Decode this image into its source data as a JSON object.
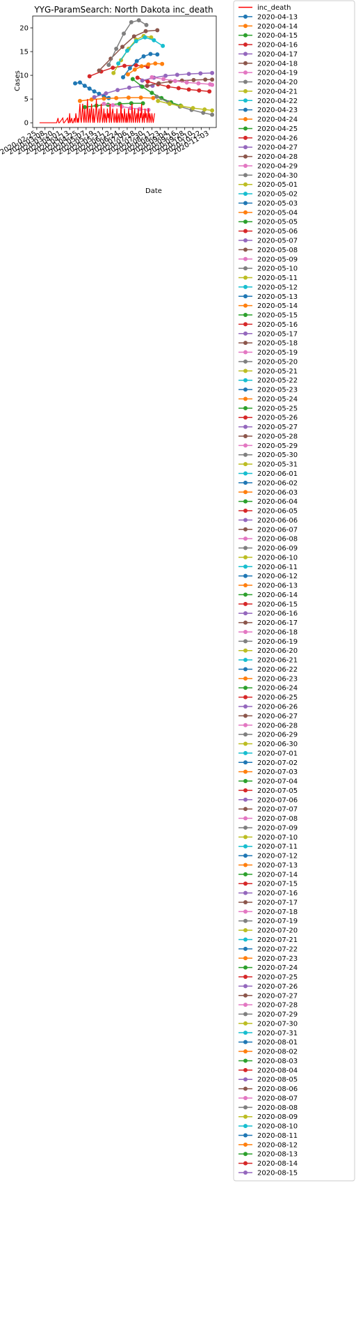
{
  "chart_data": {
    "type": "line",
    "title": "YYG-ParamSearch: North Dakota inc_death",
    "xlabel": "Date",
    "ylabel": "Cases",
    "ylim": [
      -1,
      22.5
    ],
    "xlim": [
      "2020-02-19",
      "2020-11-13"
    ],
    "y_ticks": [
      0,
      5,
      10,
      15,
      20
    ],
    "x_ticks": [
      "2020-02-25",
      "2020-03-08",
      "2020-03-20",
      "2020-04-01",
      "2020-04-13",
      "2020-04-25",
      "2020-05-07",
      "2020-05-19",
      "2020-05-31",
      "2020-06-12",
      "2020-06-24",
      "2020-07-06",
      "2020-07-18",
      "2020-07-30",
      "2020-08-11",
      "2020-08-23",
      "2020-09-04",
      "2020-09-16",
      "2020-09-28",
      "2020-10-10",
      "2020-10-22",
      "2020-11-03"
    ],
    "grid": false,
    "legend_position": "outside-right",
    "actual_color": "#ff0000",
    "palette": [
      "#1f77b4",
      "#ff7f0e",
      "#2ca02c",
      "#d62728",
      "#9467bd",
      "#8c564b",
      "#e377c2",
      "#7f7f7f",
      "#bcbd22",
      "#17becf"
    ],
    "actual": {
      "name": "inc_death",
      "x": [
        "2020-02-29",
        "2020-03-05",
        "2020-03-10",
        "2020-03-15",
        "2020-03-20",
        "2020-03-25",
        "2020-03-27",
        "2020-03-28",
        "2020-03-29",
        "2020-04-03",
        "2020-04-04",
        "2020-04-05",
        "2020-04-10",
        "2020-04-11",
        "2020-04-12",
        "2020-04-13",
        "2020-04-14",
        "2020-04-16",
        "2020-04-17",
        "2020-04-18",
        "2020-04-20",
        "2020-04-21",
        "2020-04-22",
        "2020-04-24",
        "2020-04-25",
        "2020-04-26",
        "2020-04-28",
        "2020-04-29",
        "2020-04-30",
        "2020-05-01",
        "2020-05-02",
        "2020-05-03",
        "2020-05-04",
        "2020-05-05",
        "2020-05-06",
        "2020-05-07",
        "2020-05-08",
        "2020-05-09",
        "2020-05-10",
        "2020-05-11",
        "2020-05-12",
        "2020-05-13",
        "2020-05-14",
        "2020-05-15",
        "2020-05-16",
        "2020-05-17",
        "2020-05-18",
        "2020-05-19",
        "2020-05-20",
        "2020-05-21",
        "2020-05-22",
        "2020-05-23",
        "2020-05-24",
        "2020-05-25",
        "2020-05-26",
        "2020-05-27",
        "2020-05-28",
        "2020-05-29",
        "2020-05-30",
        "2020-05-31",
        "2020-06-01",
        "2020-06-02",
        "2020-06-03",
        "2020-06-04",
        "2020-06-05",
        "2020-06-06",
        "2020-06-07",
        "2020-06-08",
        "2020-06-09",
        "2020-06-10",
        "2020-06-11",
        "2020-06-12",
        "2020-06-13",
        "2020-06-14",
        "2020-06-15",
        "2020-06-16",
        "2020-06-17",
        "2020-06-18",
        "2020-06-19",
        "2020-06-20",
        "2020-06-21",
        "2020-06-22",
        "2020-06-23",
        "2020-06-24",
        "2020-06-25",
        "2020-06-26",
        "2020-06-27",
        "2020-06-28",
        "2020-06-29",
        "2020-06-30",
        "2020-07-01",
        "2020-07-02",
        "2020-07-03",
        "2020-07-04",
        "2020-07-05",
        "2020-07-06",
        "2020-07-07",
        "2020-07-08",
        "2020-07-09",
        "2020-07-10",
        "2020-07-11",
        "2020-07-12",
        "2020-07-13",
        "2020-07-14",
        "2020-07-15",
        "2020-07-16",
        "2020-07-17",
        "2020-07-18",
        "2020-07-19",
        "2020-07-20",
        "2020-07-21",
        "2020-07-22",
        "2020-07-23",
        "2020-07-24",
        "2020-07-25",
        "2020-07-26",
        "2020-07-27",
        "2020-07-28",
        "2020-07-29",
        "2020-07-30",
        "2020-07-31",
        "2020-08-01",
        "2020-08-02",
        "2020-08-03",
        "2020-08-04",
        "2020-08-05",
        "2020-08-06",
        "2020-08-07",
        "2020-08-08",
        "2020-08-09",
        "2020-08-10",
        "2020-08-11",
        "2020-08-12",
        "2020-08-13",
        "2020-08-14",
        "2020-08-15"
      ],
      "y": [
        0,
        0,
        0,
        0,
        0,
        0,
        1,
        0,
        0,
        1,
        0,
        0,
        1,
        0,
        0,
        2,
        0,
        1,
        0,
        0,
        1,
        0,
        2,
        0,
        1,
        0,
        4,
        1,
        0,
        2,
        4,
        1,
        0,
        3,
        1,
        0,
        2,
        5,
        0,
        1,
        3,
        0,
        2,
        4,
        1,
        0,
        3,
        0,
        1,
        2,
        5,
        1,
        0,
        2,
        3,
        0,
        1,
        4,
        2,
        0,
        1,
        3,
        0,
        2,
        1,
        0,
        3,
        1,
        2,
        0,
        4,
        1,
        0,
        2,
        3,
        1,
        0,
        2,
        1,
        0,
        3,
        0,
        1,
        2,
        0,
        1,
        4,
        0,
        2,
        1,
        0,
        3,
        1,
        0,
        2,
        0,
        1,
        3,
        0,
        2,
        1,
        0,
        4,
        1,
        0,
        2,
        3,
        0,
        1,
        2,
        0,
        3,
        1,
        0,
        2,
        1,
        4,
        0,
        1,
        2,
        0,
        3,
        1,
        2,
        0,
        1,
        3,
        0,
        2,
        1,
        0,
        2,
        1,
        0,
        1,
        2
      ]
    },
    "series": [
      {
        "name": "2020-04-13",
        "x": [
          "2020-04-21",
          "2020-04-28",
          "2020-05-05",
          "2020-05-12",
          "2020-05-19",
          "2020-05-26",
          "2020-06-02",
          "2020-06-09"
        ],
        "y": [
          8.3,
          8.5,
          7.8,
          7.2,
          6.6,
          6.1,
          5.6,
          5.2
        ]
      },
      {
        "name": "2020-04-20",
        "x": [
          "2020-04-28",
          "2020-05-15",
          "2020-06-02",
          "2020-06-20",
          "2020-07-08",
          "2020-07-26",
          "2020-08-13"
        ],
        "y": [
          4.6,
          4.9,
          5.1,
          5.2,
          5.3,
          5.3,
          5.2
        ]
      },
      {
        "name": "2020-04-27",
        "x": [
          "2020-05-05",
          "2020-05-22",
          "2020-06-08",
          "2020-06-25",
          "2020-07-12",
          "2020-07-29"
        ],
        "y": [
          3.3,
          3.6,
          3.8,
          4.0,
          4.1,
          4.1
        ]
      },
      {
        "name": "2020-05-04",
        "x": [
          "2020-05-12",
          "2020-05-29",
          "2020-06-15",
          "2020-07-02",
          "2020-07-19",
          "2020-08-05"
        ],
        "y": [
          9.8,
          10.8,
          11.6,
          12.0,
          12.1,
          11.8
        ]
      },
      {
        "name": "2020-05-11",
        "x": [
          "2020-05-19",
          "2020-06-05",
          "2020-06-22",
          "2020-07-09",
          "2020-07-26",
          "2020-08-12"
        ],
        "y": [
          5.4,
          6.2,
          6.9,
          7.4,
          7.7,
          7.8
        ]
      },
      {
        "name": "2020-05-18",
        "x": [
          "2020-05-26",
          "2020-06-12",
          "2020-06-29",
          "2020-07-16",
          "2020-08-02",
          "2020-08-19"
        ],
        "y": [
          11.0,
          13.5,
          16.0,
          18.2,
          19.3,
          19.5
        ]
      },
      {
        "name": "2020-05-25",
        "x": [
          "2020-06-02",
          "2020-06-15",
          "2020-06-28",
          "2020-07-11",
          "2020-07-24",
          "2020-08-06"
        ],
        "y": [
          4.0,
          3.7,
          3.4,
          3.1,
          2.9,
          2.7
        ]
      },
      {
        "name": "2020-06-01",
        "x": [
          "2020-06-09",
          "2020-06-20",
          "2020-07-01",
          "2020-07-12",
          "2020-07-23",
          "2020-08-03"
        ],
        "y": [
          12.2,
          15.6,
          18.8,
          21.2,
          21.6,
          20.6
        ]
      },
      {
        "name": "2020-06-08",
        "x": [
          "2020-06-16",
          "2020-06-27",
          "2020-07-08",
          "2020-07-19",
          "2020-07-30",
          "2020-08-10"
        ],
        "y": [
          10.5,
          13.2,
          15.6,
          17.5,
          18.3,
          18.0
        ]
      },
      {
        "name": "2020-06-15",
        "x": [
          "2020-06-23",
          "2020-07-06",
          "2020-07-19",
          "2020-08-01",
          "2020-08-14",
          "2020-08-27"
        ],
        "y": [
          12.5,
          15.2,
          17.2,
          18.0,
          17.4,
          16.2
        ]
      },
      {
        "name": "2020-06-22",
        "x": [
          "2020-06-30",
          "2020-07-10",
          "2020-07-20",
          "2020-07-30",
          "2020-08-09",
          "2020-08-19"
        ],
        "y": [
          9.6,
          11.5,
          13.0,
          14.0,
          14.5,
          14.4
        ]
      },
      {
        "name": "2020-06-29",
        "x": [
          "2020-07-07",
          "2020-07-17",
          "2020-07-27",
          "2020-08-06",
          "2020-08-16",
          "2020-08-26"
        ],
        "y": [
          10.2,
          11.2,
          11.9,
          12.3,
          12.5,
          12.4
        ]
      },
      {
        "name": "2020-07-06",
        "x": [
          "2020-07-14",
          "2020-07-28",
          "2020-08-11",
          "2020-08-25",
          "2020-09-08",
          "2020-09-22"
        ],
        "y": [
          9.2,
          7.6,
          6.3,
          5.2,
          4.3,
          3.6
        ]
      },
      {
        "name": "2020-07-13",
        "x": [
          "2020-07-21",
          "2020-08-05",
          "2020-08-20",
          "2020-09-04",
          "2020-09-19",
          "2020-10-04",
          "2020-10-19",
          "2020-11-03"
        ],
        "y": [
          9.5,
          8.7,
          8.1,
          7.6,
          7.3,
          7.0,
          6.8,
          6.6
        ]
      },
      {
        "name": "2020-07-20",
        "x": [
          "2020-07-28",
          "2020-08-14",
          "2020-08-31",
          "2020-09-17",
          "2020-10-04",
          "2020-10-21",
          "2020-11-07"
        ],
        "y": [
          8.9,
          9.5,
          9.9,
          10.1,
          10.3,
          10.4,
          10.5
        ]
      },
      {
        "name": "2020-07-27",
        "x": [
          "2020-08-04",
          "2020-08-21",
          "2020-09-07",
          "2020-09-24",
          "2020-10-11",
          "2020-10-28",
          "2020-11-07"
        ],
        "y": [
          7.8,
          8.3,
          8.7,
          8.9,
          9.0,
          9.1,
          9.1
        ]
      },
      {
        "name": "2020-08-03",
        "x": [
          "2020-08-11",
          "2020-08-28",
          "2020-09-14",
          "2020-10-01",
          "2020-10-18",
          "2020-11-04",
          "2020-11-07"
        ],
        "y": [
          9.6,
          9.2,
          8.8,
          8.5,
          8.3,
          8.1,
          8.0
        ]
      },
      {
        "name": "2020-08-10",
        "x": [
          "2020-08-18",
          "2020-09-04",
          "2020-09-21",
          "2020-10-08",
          "2020-10-25",
          "2020-11-07"
        ],
        "y": [
          5.5,
          4.3,
          3.4,
          2.7,
          2.1,
          1.7
        ]
      },
      {
        "name": "2020-08-15",
        "x": [
          "2020-08-20",
          "2020-09-06",
          "2020-09-23",
          "2020-10-10",
          "2020-10-27",
          "2020-11-07"
        ],
        "y": [
          4.6,
          4.0,
          3.5,
          3.1,
          2.8,
          2.6
        ]
      }
    ],
    "legend_entries": [
      "inc_death",
      "2020-04-13",
      "2020-04-14",
      "2020-04-15",
      "2020-04-16",
      "2020-04-17",
      "2020-04-18",
      "2020-04-19",
      "2020-04-20",
      "2020-04-21",
      "2020-04-22",
      "2020-04-23",
      "2020-04-24",
      "2020-04-25",
      "2020-04-26",
      "2020-04-27",
      "2020-04-28",
      "2020-04-29",
      "2020-04-30",
      "2020-05-01",
      "2020-05-02",
      "2020-05-03",
      "2020-05-04",
      "2020-05-05",
      "2020-05-06",
      "2020-05-07",
      "2020-05-08",
      "2020-05-09",
      "2020-05-10",
      "2020-05-11",
      "2020-05-12",
      "2020-05-13",
      "2020-05-14",
      "2020-05-15",
      "2020-05-16",
      "2020-05-17",
      "2020-05-18",
      "2020-05-19",
      "2020-05-20",
      "2020-05-21",
      "2020-05-22",
      "2020-05-23",
      "2020-05-24",
      "2020-05-25",
      "2020-05-26",
      "2020-05-27",
      "2020-05-28",
      "2020-05-29",
      "2020-05-30",
      "2020-05-31",
      "2020-06-01",
      "2020-06-02",
      "2020-06-03",
      "2020-06-04",
      "2020-06-05",
      "2020-06-06",
      "2020-06-07",
      "2020-06-08",
      "2020-06-09",
      "2020-06-10",
      "2020-06-11",
      "2020-06-12",
      "2020-06-13",
      "2020-06-14",
      "2020-06-15",
      "2020-06-16",
      "2020-06-17",
      "2020-06-18",
      "2020-06-19",
      "2020-06-20",
      "2020-06-21",
      "2020-06-22",
      "2020-06-23",
      "2020-06-24",
      "2020-06-25",
      "2020-06-26",
      "2020-06-27",
      "2020-06-28",
      "2020-06-29",
      "2020-06-30",
      "2020-07-01",
      "2020-07-02",
      "2020-07-03",
      "2020-07-04",
      "2020-07-05",
      "2020-07-06",
      "2020-07-07",
      "2020-07-08",
      "2020-07-09",
      "2020-07-10",
      "2020-07-11",
      "2020-07-12",
      "2020-07-13",
      "2020-07-14",
      "2020-07-15",
      "2020-07-16",
      "2020-07-17",
      "2020-07-18",
      "2020-07-19",
      "2020-07-20",
      "2020-07-21",
      "2020-07-22",
      "2020-07-23",
      "2020-07-24",
      "2020-07-25",
      "2020-07-26",
      "2020-07-27",
      "2020-07-28",
      "2020-07-29",
      "2020-07-30",
      "2020-07-31",
      "2020-08-01",
      "2020-08-02",
      "2020-08-03",
      "2020-08-04",
      "2020-08-05",
      "2020-08-06",
      "2020-08-07",
      "2020-08-08",
      "2020-08-09",
      "2020-08-10",
      "2020-08-11",
      "2020-08-12",
      "2020-08-13",
      "2020-08-14",
      "2020-08-15"
    ]
  }
}
